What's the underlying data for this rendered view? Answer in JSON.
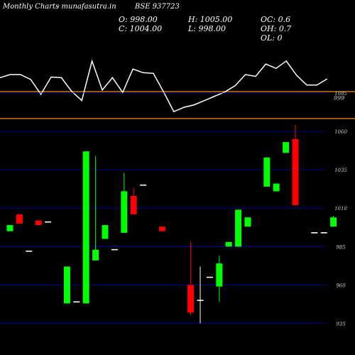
{
  "header": {
    "left_title": "Monthly Charts",
    "site": "- munafasutra.in",
    "symbol": "BSE 937723",
    "open": "O: 998.00",
    "high": "H: 1005.00",
    "close": "C: 1004.00",
    "low": "L: 998.00",
    "oc": "OC: 0.6",
    "oh": "OH: 0.7",
    "ol": "OL: 0"
  },
  "colors": {
    "background": "#000000",
    "up": "#00ff00",
    "down": "#ff0000",
    "neutral": "#ffffff",
    "grid": "#0000aa",
    "orange_line": "#ff8c00",
    "label": "#cccccc"
  },
  "chart_data": [
    {
      "type": "line",
      "panel": "indicator",
      "hline_label": "999",
      "values": [
        0.72,
        0.77,
        0.77,
        0.69,
        0.45,
        0.73,
        0.72,
        0.5,
        0.35,
        0.99,
        0.52,
        0.72,
        0.48,
        0.86,
        0.8,
        0.79,
        0.49,
        0.17,
        0.24,
        0.28,
        0.35,
        0.42,
        0.49,
        0.59,
        0.77,
        0.74,
        0.94,
        0.87,
        0.99,
        0.76,
        0.6,
        0.6,
        0.7
      ]
    },
    {
      "type": "candlestick",
      "panel": "price",
      "y_ticks": [
        1085,
        1060,
        1035,
        1010,
        985,
        960,
        935
      ],
      "ylim": [
        930,
        1085
      ],
      "candles": [
        {
          "o": 995,
          "h": 999,
          "l": 995,
          "c": 999
        },
        {
          "o": 1006,
          "h": 1006,
          "l": 1000,
          "c": 1000
        },
        {
          "o": 982,
          "h": 982,
          "l": 982,
          "c": 982
        },
        {
          "o": 1002,
          "h": 1002,
          "l": 999,
          "c": 999
        },
        {
          "o": 1001,
          "h": 1001,
          "l": 1001,
          "c": 1001
        },
        {
          "o": null,
          "h": null,
          "l": null,
          "c": null
        },
        {
          "o": 948,
          "h": 972,
          "l": 948,
          "c": 972
        },
        {
          "o": 949,
          "h": 949,
          "l": 949,
          "c": 949
        },
        {
          "o": 948,
          "h": 1047,
          "l": 948,
          "c": 1047
        },
        {
          "o": 976,
          "h": 1044,
          "l": 976,
          "c": 983
        },
        {
          "o": 990,
          "h": 999,
          "l": 990,
          "c": 999
        },
        {
          "o": 983,
          "h": 983,
          "l": 983,
          "c": 983
        },
        {
          "o": 994,
          "h": 1033,
          "l": 994,
          "c": 1021
        },
        {
          "o": 1018,
          "h": 1023,
          "l": 1006,
          "c": 1006
        },
        {
          "o": 1025,
          "h": 1025,
          "l": 1025,
          "c": 1025
        },
        {
          "o": null,
          "h": null,
          "l": null,
          "c": null
        },
        {
          "o": 998,
          "h": 998,
          "l": 995,
          "c": 995
        },
        {
          "o": null,
          "h": null,
          "l": null,
          "c": null
        },
        {
          "o": null,
          "h": null,
          "l": null,
          "c": null
        },
        {
          "o": 960,
          "h": 988,
          "l": 940,
          "c": 942
        },
        {
          "o": 950,
          "h": 972,
          "l": 935,
          "c": 950
        },
        {
          "o": 965,
          "h": 965,
          "l": 965,
          "c": 965
        },
        {
          "o": 959,
          "h": 979,
          "l": 949,
          "c": 974
        },
        {
          "o": 985,
          "h": 988,
          "l": 985,
          "c": 988
        },
        {
          "o": 985,
          "h": 1009,
          "l": 985,
          "c": 1009
        },
        {
          "o": 998,
          "h": 1004,
          "l": 998,
          "c": 1004
        },
        {
          "o": null,
          "h": null,
          "l": null,
          "c": null
        },
        {
          "o": 1024,
          "h": 1043,
          "l": 1024,
          "c": 1043
        },
        {
          "o": 1021,
          "h": 1026,
          "l": 1021,
          "c": 1026
        },
        {
          "o": 1046,
          "h": 1053,
          "l": 1046,
          "c": 1053
        },
        {
          "o": 1055,
          "h": 1064,
          "l": 1012,
          "c": 1012
        },
        {
          "o": null,
          "h": null,
          "l": null,
          "c": null
        },
        {
          "o": 994,
          "h": 994,
          "l": 994,
          "c": 994
        },
        {
          "o": 994,
          "h": 994,
          "l": 994,
          "c": 994
        },
        {
          "o": 998,
          "h": 1005,
          "l": 998,
          "c": 1004
        }
      ]
    }
  ]
}
